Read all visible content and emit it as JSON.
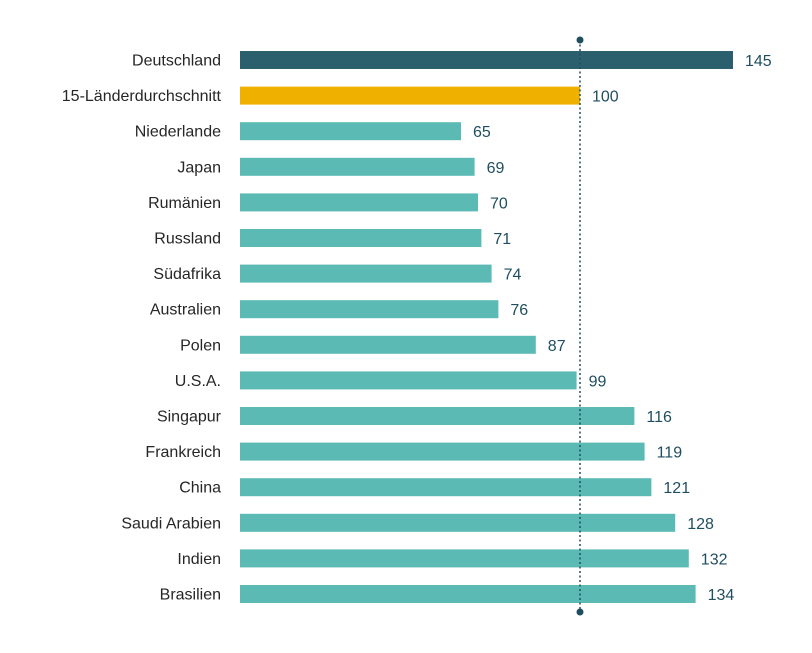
{
  "chart_data": {
    "type": "bar",
    "orientation": "horizontal",
    "title": "",
    "xlabel": "",
    "ylabel": "",
    "xlim": [
      0,
      145
    ],
    "reference_line": 100,
    "categories": [
      "Deutschland",
      "15-Länderdurchschnitt",
      "Niederlande",
      "Japan",
      "Rumänien",
      "Russland",
      "Südafrika",
      "Australien",
      "Polen",
      "U.S.A.",
      "Singapur",
      "Frankreich",
      "China",
      "Saudi Arabien",
      "Indien",
      "Brasilien"
    ],
    "values": [
      145,
      100,
      65,
      69,
      70,
      71,
      74,
      76,
      87,
      99,
      116,
      119,
      121,
      128,
      132,
      134
    ],
    "value_labels": [
      "145",
      "100",
      "65",
      "69",
      "70",
      "71",
      "74",
      "76",
      "87",
      "99",
      "116",
      "119",
      "121",
      "128",
      "132",
      "134"
    ],
    "colors": {
      "highlight": "#2b5f6e",
      "average": "#f0b000",
      "default": "#5cbab4",
      "reference": "#1f4e5f",
      "value_text": "#1f4e5f",
      "label_text": "#262626"
    },
    "bar_color_roles": [
      "highlight",
      "average",
      "default",
      "default",
      "default",
      "default",
      "default",
      "default",
      "default",
      "default",
      "default",
      "default",
      "default",
      "default",
      "default",
      "default"
    ]
  }
}
